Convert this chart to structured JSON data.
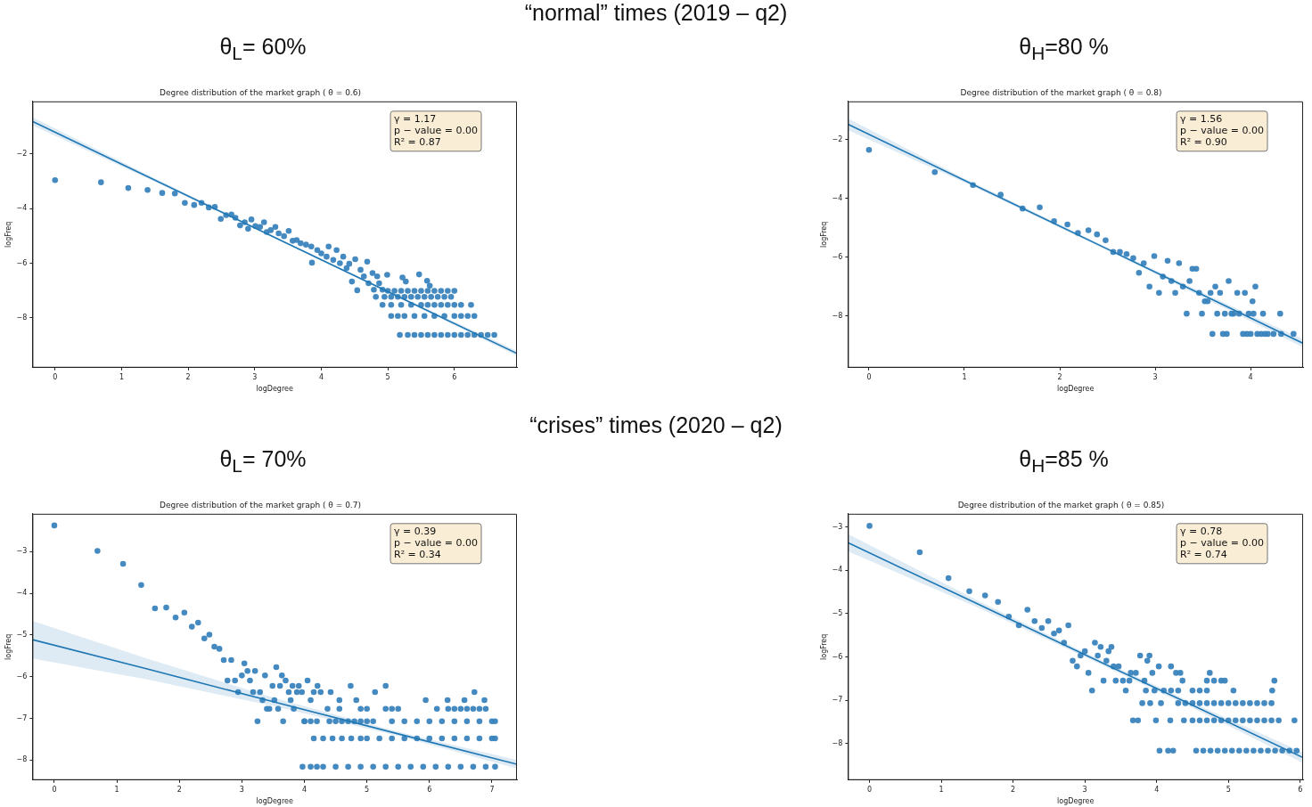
{
  "chart_data": [
    {
      "type": "scatter",
      "title": "Degree distribution of the market graph ( θ = 0.6)",
      "subtitle": "θ$_{L}$= 60%",
      "xlabel": "logDegree",
      "ylabel": "logFreq",
      "xlim": [
        -0.34,
        6.94
      ],
      "ylim": [
        -9.82,
        -0.08
      ],
      "xticks": [
        0,
        1,
        2,
        3,
        4,
        5,
        6
      ],
      "yticks": [
        -8,
        -6,
        -4,
        -2
      ],
      "grid": false,
      "legend": false,
      "marker": "circle",
      "annotations": [
        "“normal” times (2019 – q2)",
        "γ = 1.17\np − value = 0.00\nR² = 0.87"
      ],
      "series": [
        {
          "type": "line",
          "color": "#1f77b4",
          "marker": "none",
          "x": [
            -0.34,
            1.5,
            3.5,
            5.5,
            6.94
          ],
          "values": [
            -0.81,
            -2.96,
            -5.29,
            -7.62,
            -9.3
          ],
          "lower": [
            -0.96,
            -3.02,
            -5.32,
            -7.67,
            -9.39
          ],
          "upper": [
            -0.66,
            -2.9,
            -5.26,
            -7.57,
            -9.21
          ]
        },
        {
          "color": "#3a84bd",
          "x": [
            0,
            0.69,
            1.1,
            1.39,
            1.61,
            1.8,
            1.95,
            2.09,
            2.2,
            2.31,
            2.4,
            2.49,
            2.57,
            2.65,
            2.71,
            2.78,
            2.85,
            2.9,
            2.95,
            3.01,
            3.08,
            3.14,
            3.18,
            3.24,
            3.31,
            3.36,
            3.44,
            3.51,
            3.57,
            3.63,
            3.69,
            3.77,
            3.85,
            3.86,
            3.94,
            4.0,
            4.08,
            4.11,
            4.18,
            4.23,
            4.28,
            4.33,
            4.38,
            4.42,
            4.46,
            4.51,
            4.54,
            4.59,
            4.64,
            4.69,
            4.71,
            4.77,
            4.79,
            4.84,
            4.87,
            4.92,
            4.99,
            5.22,
            5.27,
            5.47,
            5.59,
            5.63
          ],
          "values": [
            -2.96,
            -3.04,
            -3.25,
            -3.32,
            -3.43,
            -3.45,
            -3.79,
            -3.87,
            -3.79,
            -3.96,
            -3.94,
            -4.38,
            -4.24,
            -4.22,
            -4.34,
            -4.62,
            -4.5,
            -4.74,
            -4.4,
            -4.64,
            -4.67,
            -4.5,
            -4.86,
            -4.79,
            -4.67,
            -4.91,
            -5.01,
            -4.82,
            -5.18,
            -5.15,
            -5.27,
            -5.32,
            -5.39,
            -5.98,
            -5.52,
            -5.64,
            -5.76,
            -5.39,
            -5.88,
            -5.52,
            -6.0,
            -5.76,
            -6.18,
            -6.02,
            -6.67,
            -5.85,
            -6.99,
            -6.24,
            -6.48,
            -5.94,
            -6.73,
            -6.36,
            -6.97,
            -6.48,
            -6.73,
            -6.97,
            -6.42,
            -6.52,
            -6.67,
            -6.41,
            -6.64,
            -6.82
          ]
        },
        {
          "color": "#3a84bd",
          "x": [
            5.0,
            5.1,
            5.2,
            5.3,
            5.4,
            5.5,
            5.6,
            5.7,
            5.8,
            5.9,
            6.0
          ],
          "values": [
            -7.01,
            -7.01,
            -7.01,
            -7.01,
            -7.01,
            -7.01,
            -7.01,
            -7.01,
            -7.01,
            -7.01,
            -7.01
          ]
        },
        {
          "color": "#3a84bd",
          "x": [
            4.82,
            4.95,
            5.05,
            5.15,
            5.25,
            5.35,
            5.45,
            5.55,
            5.65,
            5.75,
            5.85,
            5.95
          ],
          "values": [
            -7.23,
            -7.23,
            -7.23,
            -7.23,
            -7.23,
            -7.23,
            -7.23,
            -7.23,
            -7.23,
            -7.23,
            -7.23,
            -7.23
          ]
        },
        {
          "color": "#3a84bd",
          "x": [
            4.92,
            5.05,
            5.2,
            5.35,
            5.5,
            5.6,
            5.7,
            5.8,
            5.9,
            6.0,
            6.1,
            6.25
          ],
          "values": [
            -7.52,
            -7.52,
            -7.52,
            -7.52,
            -7.52,
            -7.52,
            -7.52,
            -7.52,
            -7.52,
            -7.52,
            -7.52,
            -7.52
          ]
        },
        {
          "color": "#3a84bd",
          "x": [
            5.05,
            5.15,
            5.25,
            5.4,
            5.55,
            5.7,
            5.85,
            6.0,
            6.1,
            6.2,
            6.3
          ],
          "values": [
            -7.93,
            -7.93,
            -7.93,
            -7.93,
            -7.93,
            -7.93,
            -7.93,
            -7.93,
            -7.93,
            -7.93,
            -7.93
          ]
        },
        {
          "color": "#3a84bd",
          "x": [
            5.18,
            5.3,
            5.4,
            5.5,
            5.6,
            5.7,
            5.8,
            5.9,
            6.0,
            6.1,
            6.2,
            6.3,
            6.4,
            6.5,
            6.6
          ],
          "values": [
            -8.62,
            -8.62,
            -8.62,
            -8.62,
            -8.62,
            -8.62,
            -8.62,
            -8.62,
            -8.62,
            -8.62,
            -8.62,
            -8.62,
            -8.62,
            -8.62,
            -8.62
          ]
        }
      ]
    },
    {
      "type": "scatter",
      "title": "Degree distribution of the market graph ( θ = 0.8)",
      "subtitle": "θ$_{H}$=80 %",
      "xlabel": "logDegree",
      "ylabel": "logFreq",
      "xlim": [
        -0.22,
        4.55
      ],
      "ylim": [
        -9.77,
        -0.7
      ],
      "xticks": [
        0,
        1,
        2,
        3,
        4
      ],
      "yticks": [
        -8,
        -6,
        -4,
        -2
      ],
      "grid": false,
      "legend": false,
      "marker": "circle",
      "annotations": [
        "γ = 1.56\np − value = 0.00\nR² = 0.90"
      ],
      "series": [
        {
          "type": "line",
          "color": "#1f77b4",
          "marker": "none",
          "x": [
            -0.22,
            1,
            2.5,
            4,
            4.55
          ],
          "values": [
            -1.48,
            -3.39,
            -5.73,
            -8.08,
            -8.94
          ],
          "lower": [
            -1.68,
            -3.46,
            -5.78,
            -8.18,
            -9.08
          ],
          "upper": [
            -1.28,
            -3.32,
            -5.68,
            -7.98,
            -8.8
          ]
        },
        {
          "color": "#3a84bd",
          "x": [
            0,
            0.69,
            1.09,
            1.38,
            1.61,
            1.79,
            1.94,
            2.08,
            2.19,
            2.3,
            2.39,
            2.48,
            2.56,
            2.63,
            2.7,
            2.77,
            2.83,
            2.88,
            2.94,
            2.99,
            3.04,
            3.08,
            3.13,
            3.17,
            3.21,
            3.25,
            3.29,
            3.33,
            3.36,
            3.39,
            3.43,
            3.46,
            3.49,
            3.52,
            3.55,
            3.58,
            3.6,
            3.63,
            3.65,
            3.68,
            3.71,
            3.73,
            3.75,
            3.77,
            3.8,
            3.82,
            3.86,
            3.88,
            3.92,
            3.94,
            3.96,
            3.98,
            4.0,
            4.02,
            4.03,
            4.05,
            4.07,
            4.11,
            4.13,
            4.15,
            4.18,
            4.24,
            4.31,
            4.32,
            4.45
          ],
          "values": [
            -2.35,
            -3.11,
            -3.55,
            -3.88,
            -4.35,
            -4.31,
            -4.78,
            -4.89,
            -5.18,
            -5.09,
            -5.23,
            -5.43,
            -5.83,
            -5.83,
            -5.9,
            -6.04,
            -6.54,
            -6.21,
            -7.01,
            -5.97,
            -7.22,
            -6.67,
            -6.13,
            -6.82,
            -7.22,
            -6.21,
            -7.01,
            -7.93,
            -6.82,
            -6.4,
            -6.4,
            -7.22,
            -7.93,
            -7.51,
            -7.51,
            -7.22,
            -8.62,
            -7.01,
            -7.93,
            -7.22,
            -8.62,
            -7.93,
            -8.62,
            -6.82,
            -7.93,
            -7.93,
            -7.22,
            -7.93,
            -8.62,
            -7.22,
            -8.62,
            -7.93,
            -8.62,
            -7.51,
            -7.93,
            -7.01,
            -8.62,
            -8.62,
            -7.93,
            -8.62,
            -8.62,
            -8.62,
            -7.93,
            -8.62,
            -8.62
          ]
        }
      ]
    },
    {
      "type": "scatter",
      "title": "Degree distribution of the market graph ( θ = 0.7)",
      "subtitle": "θ$_{L}$= 70%",
      "xlabel": "logDegree",
      "ylabel": "logFreq",
      "xlim": [
        -0.35,
        7.4
      ],
      "ylim": [
        -8.48,
        -2.09
      ],
      "xticks": [
        0,
        1,
        2,
        3,
        4,
        5,
        6,
        7
      ],
      "yticks": [
        -8,
        -7,
        -6,
        -5,
        -4,
        -3
      ],
      "grid": false,
      "legend": false,
      "marker": "circle",
      "annotations": [
        "“crises” times (2020 – q2)",
        "γ = 0.39\np − value = 0.00\nR² = 0.34"
      ],
      "series": [
        {
          "type": "line",
          "color": "#1f77b4",
          "marker": "none",
          "x": [
            -0.35,
            1.5,
            3.5,
            5.5,
            7.4
          ],
          "values": [
            -5.11,
            -5.82,
            -6.6,
            -7.37,
            -8.1
          ],
          "lower": [
            -5.56,
            -6.07,
            -6.7,
            -7.42,
            -8.2
          ],
          "upper": [
            -4.66,
            -5.57,
            -6.5,
            -7.32,
            -8.0
          ]
        },
        {
          "color": "#3a84bd",
          "x": [
            0,
            0.69,
            1.1,
            1.39,
            1.61,
            1.79,
            1.94,
            2.08,
            2.2,
            2.3,
            2.4,
            2.48,
            2.56,
            2.64,
            2.71,
            2.77,
            2.83,
            2.89,
            2.94,
            3.0,
            3.04,
            3.09,
            3.13,
            3.18,
            3.21,
            3.25,
            3.29,
            3.33,
            3.37,
            3.4,
            3.44,
            3.49,
            3.52,
            3.55,
            3.58,
            3.61,
            3.64,
            3.66,
            3.7,
            3.75,
            3.78,
            3.81,
            3.83,
            3.88,
            3.91,
            3.96,
            4.0,
            4.05,
            4.1,
            4.15,
            4.21,
            4.26,
            4.37,
            4.42,
            4.56,
            4.74,
            4.83,
            5.13,
            5.3,
            5.94,
            6.12,
            6.29,
            6.56,
            6.72,
            6.88
          ],
          "values": [
            -2.37,
            -2.98,
            -3.29,
            -3.8,
            -4.36,
            -4.34,
            -4.58,
            -4.46,
            -4.8,
            -4.7,
            -5.08,
            -4.99,
            -5.28,
            -5.33,
            -5.6,
            -6.09,
            -5.6,
            -6.09,
            -6.37,
            -5.97,
            -5.68,
            -5.86,
            -6.09,
            -6.37,
            -5.86,
            -7.07,
            -6.37,
            -6.56,
            -5.97,
            -6.77,
            -6.77,
            -6.22,
            -6.56,
            -5.77,
            -6.77,
            -6.22,
            -5.97,
            -7.07,
            -6.09,
            -6.37,
            -6.56,
            -6.22,
            -6.77,
            -6.37,
            -6.22,
            -6.37,
            -7.07,
            -6.09,
            -6.56,
            -6.37,
            -6.22,
            -6.37,
            -6.77,
            -6.37,
            -6.56,
            -6.22,
            -6.56,
            -6.37,
            -6.22,
            -6.56,
            -6.77,
            -6.56,
            -6.56,
            -6.37,
            -6.56
          ]
        },
        {
          "color": "#3a84bd",
          "x": [
            4.56,
            4.9,
            5.0,
            5.3,
            5.4,
            5.5,
            6.3,
            6.4,
            6.5,
            6.6,
            6.7,
            6.8,
            6.9
          ],
          "values": [
            -6.77,
            -6.77,
            -6.77,
            -6.77,
            -6.77,
            -6.77,
            -6.77,
            -6.77,
            -6.77,
            -6.77,
            -6.77,
            -6.77,
            -6.77
          ]
        },
        {
          "color": "#3a84bd",
          "x": [
            4.0,
            4.1,
            4.2,
            4.4,
            4.5,
            4.6,
            4.7,
            4.8,
            4.9,
            5.0,
            5.1,
            5.4,
            5.6,
            5.8,
            6.0,
            6.2,
            6.4,
            6.6,
            6.8,
            7.0,
            7.05
          ],
          "values": [
            -7.07,
            -7.07,
            -7.07,
            -7.07,
            -7.07,
            -7.07,
            -7.07,
            -7.07,
            -7.07,
            -7.07,
            -7.07,
            -7.07,
            -7.07,
            -7.07,
            -7.07,
            -7.07,
            -7.07,
            -7.07,
            -7.07,
            -7.07,
            -7.07
          ]
        },
        {
          "color": "#3a84bd",
          "x": [
            4.15,
            4.3,
            4.45,
            4.6,
            4.75,
            4.9,
            5.0,
            5.2,
            5.4,
            5.6,
            5.8,
            6.0,
            6.2,
            6.4,
            6.6,
            6.8,
            7.0,
            7.05
          ],
          "values": [
            -7.48,
            -7.48,
            -7.48,
            -7.48,
            -7.48,
            -7.48,
            -7.48,
            -7.48,
            -7.48,
            -7.48,
            -7.48,
            -7.48,
            -7.48,
            -7.48,
            -7.48,
            -7.48,
            -7.48,
            -7.48
          ]
        },
        {
          "color": "#3a84bd",
          "x": [
            3.97,
            4.1,
            4.2,
            4.3,
            4.5,
            4.7,
            4.9,
            5.1,
            5.3,
            5.5,
            5.7,
            5.9,
            6.1,
            6.3,
            6.5,
            6.7,
            6.9,
            7.05
          ],
          "values": [
            -8.16,
            -8.16,
            -8.16,
            -8.16,
            -8.16,
            -8.16,
            -8.16,
            -8.16,
            -8.16,
            -8.16,
            -8.16,
            -8.16,
            -8.16,
            -8.16,
            -8.16,
            -8.16,
            -8.16,
            -8.16
          ]
        }
      ]
    },
    {
      "type": "scatter",
      "title": "Degree distribution of the market graph ( θ = 0.85)",
      "subtitle": "θ$_{H}$=85 %",
      "xlabel": "logDegree",
      "ylabel": "logFreq",
      "xlim": [
        -0.3,
        6.04
      ],
      "ylim": [
        -8.85,
        -2.69
      ],
      "xticks": [
        0,
        1,
        2,
        3,
        4,
        5,
        6
      ],
      "yticks": [
        -8,
        -7,
        -6,
        -5,
        -4,
        -3
      ],
      "grid": false,
      "legend": false,
      "marker": "circle",
      "annotations": [
        "γ = 0.78\np − value = 0.00\nR² = 0.74"
      ],
      "series": [
        {
          "type": "line",
          "color": "#1f77b4",
          "marker": "none",
          "x": [
            -0.3,
            1.5,
            3,
            4.5,
            6.04
          ],
          "values": [
            -3.36,
            -4.77,
            -5.95,
            -7.12,
            -8.33
          ],
          "lower": [
            -3.56,
            -4.85,
            -6.0,
            -7.18,
            -8.45
          ],
          "upper": [
            -3.16,
            -4.69,
            -5.9,
            -7.06,
            -8.21
          ]
        },
        {
          "color": "#3a84bd",
          "x": [
            0,
            0.7,
            1.1,
            1.39,
            1.61,
            1.79,
            1.94,
            2.08,
            2.2,
            2.3,
            2.4,
            2.49,
            2.57,
            2.64,
            2.71,
            2.77,
            2.83,
            2.89,
            2.94,
            3.0,
            3.05,
            3.1,
            3.14,
            3.18,
            3.22,
            3.26,
            3.3,
            3.33,
            3.37,
            3.4,
            3.43,
            3.47,
            3.53,
            3.57,
            3.62,
            3.64,
            3.67,
            3.71,
            3.74,
            3.77,
            3.8,
            3.83,
            3.85,
            3.87,
            3.9,
            3.91,
            3.94,
            3.97,
            3.99,
            4.03,
            4.04,
            4.06,
            4.1,
            4.16,
            4.19,
            4.2,
            4.23,
            4.27,
            4.3,
            4.33,
            4.36,
            4.38,
            4.74,
            4.9,
            5.07,
            5.61,
            5.64,
            5.92
          ],
          "values": [
            -2.97,
            -3.58,
            -4.18,
            -4.48,
            -4.58,
            -4.73,
            -5.07,
            -5.27,
            -4.91,
            -5.17,
            -5.33,
            -5.17,
            -5.46,
            -5.39,
            -5.67,
            -5.27,
            -6.09,
            -6.22,
            -5.97,
            -5.87,
            -6.37,
            -6.78,
            -5.67,
            -5.97,
            -5.77,
            -6.55,
            -6.09,
            -5.87,
            -5.77,
            -6.22,
            -6.55,
            -6.22,
            -6.55,
            -6.78,
            -6.55,
            -6.37,
            -7.47,
            -6.37,
            -7.47,
            -5.97,
            -7.07,
            -6.55,
            -6.78,
            -6.09,
            -5.97,
            -7.07,
            -6.37,
            -6.78,
            -7.47,
            -6.22,
            -8.17,
            -7.07,
            -6.78,
            -8.17,
            -7.47,
            -6.22,
            -8.17,
            -6.37,
            -7.07,
            -6.37,
            -6.55,
            -7.47,
            -6.37,
            -6.55,
            -6.78,
            -6.78,
            -6.55,
            -7.47
          ]
        },
        {
          "color": "#3a84bd",
          "x": [
            4.2,
            4.3,
            4.5,
            4.6,
            4.7
          ],
          "values": [
            -6.78,
            -6.78,
            -6.78,
            -6.78,
            -6.78
          ]
        },
        {
          "color": "#3a84bd",
          "x": [
            4.7,
            4.8,
            4.95
          ],
          "values": [
            -6.55,
            -6.55,
            -6.55
          ]
        },
        {
          "color": "#3a84bd",
          "x": [
            4.4,
            4.5,
            4.6,
            4.7,
            4.8,
            4.9,
            5.0,
            5.1,
            5.2,
            5.3,
            5.4,
            5.5,
            5.6
          ],
          "values": [
            -7.07,
            -7.07,
            -7.07,
            -7.07,
            -7.07,
            -7.07,
            -7.07,
            -7.07,
            -7.07,
            -7.07,
            -7.07,
            -7.07,
            -7.07
          ]
        },
        {
          "color": "#3a84bd",
          "x": [
            4.5,
            4.6,
            4.7,
            4.8,
            4.9,
            5.0,
            5.1,
            5.2,
            5.3,
            5.4,
            5.5,
            5.6,
            5.7
          ],
          "values": [
            -7.47,
            -7.47,
            -7.47,
            -7.47,
            -7.47,
            -7.47,
            -7.47,
            -7.47,
            -7.47,
            -7.47,
            -7.47,
            -7.47,
            -7.47
          ]
        },
        {
          "color": "#3a84bd",
          "x": [
            4.55,
            4.65,
            4.75,
            4.85,
            4.95,
            5.05,
            5.15,
            5.25,
            5.35,
            5.45,
            5.55,
            5.65,
            5.75,
            5.85,
            5.95
          ],
          "values": [
            -8.17,
            -8.17,
            -8.17,
            -8.17,
            -8.17,
            -8.17,
            -8.17,
            -8.17,
            -8.17,
            -8.17,
            -8.17,
            -8.17,
            -8.17,
            -8.17,
            -8.17
          ]
        }
      ]
    }
  ]
}
